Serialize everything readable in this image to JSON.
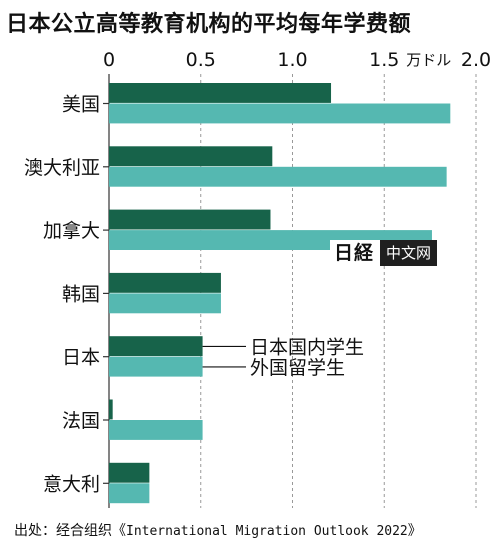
{
  "title": "日本公立高等教育机构的平均每年学费额",
  "source": {
    "prefix": "出处：经合组织《",
    "name": "International Migration Outlook 2022",
    "suffix": "》"
  },
  "watermark": {
    "logo": "日経",
    "text": "中文网"
  },
  "colors": {
    "series1": "#17634a",
    "series2": "#55b8b1",
    "grid": "#999999"
  },
  "chart_data": {
    "type": "bar",
    "orientation": "horizontal",
    "unit": "万ドル",
    "xlim": [
      0,
      2.0
    ],
    "ticks": [
      "0",
      "0.5",
      "1.0",
      "1.5",
      "2.0"
    ],
    "tick_values": [
      0,
      0.5,
      1.0,
      1.5,
      2.0
    ],
    "grid": "vertical dashed",
    "categories": [
      "美国",
      "澳大利亚",
      "加拿大",
      "韩国",
      "日本",
      "法国",
      "意大利"
    ],
    "series": [
      {
        "name": "日本国内学生",
        "values": [
          1.21,
          0.89,
          0.88,
          0.61,
          0.51,
          0.02,
          0.22
        ]
      },
      {
        "name": "外国留学生",
        "values": [
          1.86,
          1.84,
          1.76,
          0.61,
          0.51,
          0.51,
          0.22
        ]
      }
    ]
  }
}
